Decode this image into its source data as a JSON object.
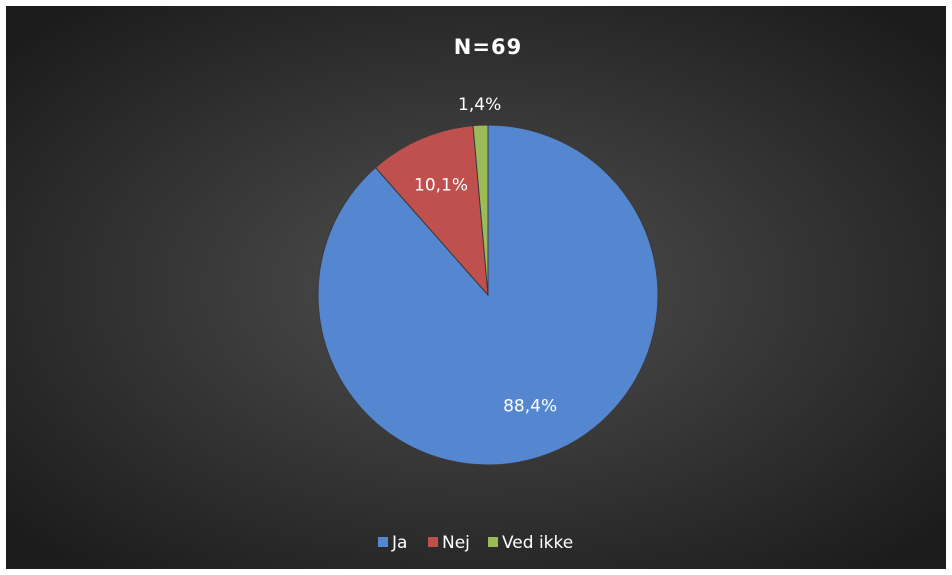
{
  "chart_data": {
    "type": "pie",
    "title": "N=69",
    "categories": [
      "Ja",
      "Nej",
      "Ved ikke"
    ],
    "values": [
      88.4,
      10.1,
      1.4
    ],
    "value_labels": [
      "88,4%",
      "10,1%",
      "1,4%"
    ],
    "colors": [
      "#5586d0",
      "#c0504d",
      "#9bbb59"
    ],
    "legend": "bottom"
  }
}
